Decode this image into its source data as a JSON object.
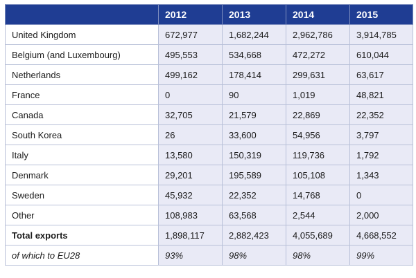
{
  "table": {
    "header": [
      "",
      "2012",
      "2013",
      "2014",
      "2015"
    ],
    "rows": [
      {
        "label": "United Kingdom",
        "values": [
          "672,977",
          "1,682,244",
          "2,962,786",
          "3,914,785"
        ]
      },
      {
        "label": "Belgium (and Luxembourg)",
        "values": [
          "495,553",
          "534,668",
          "472,272",
          "610,044"
        ]
      },
      {
        "label": "Netherlands",
        "values": [
          "499,162",
          "178,414",
          "299,631",
          "63,617"
        ]
      },
      {
        "label": "France",
        "values": [
          "0",
          "90",
          "1,019",
          "48,821"
        ]
      },
      {
        "label": "Canada",
        "values": [
          "32,705",
          "21,579",
          "22,869",
          "22,352"
        ]
      },
      {
        "label": "South Korea",
        "values": [
          "26",
          "33,600",
          "54,956",
          "3,797"
        ]
      },
      {
        "label": "Italy",
        "values": [
          "13,580",
          "150,319",
          "119,736",
          "1,792"
        ]
      },
      {
        "label": "Denmark",
        "values": [
          "29,201",
          "195,589",
          "105,108",
          "1,343"
        ]
      },
      {
        "label": "Sweden",
        "values": [
          "45,932",
          "22,352",
          "14,768",
          "0"
        ]
      },
      {
        "label": "Other",
        "values": [
          "108,983",
          "63,568",
          "2,544",
          "2,000"
        ]
      },
      {
        "label": "Total exports",
        "values": [
          "1,898,117",
          "2,882,423",
          "4,055,689",
          "4,668,552"
        ],
        "style": "bold"
      },
      {
        "label": "of which to EU28",
        "values": [
          "93%",
          "98%",
          "98%",
          "99%"
        ],
        "style": "italic"
      }
    ]
  },
  "colors": {
    "header_bg": "#1f3d93",
    "header_text": "#ffffff",
    "value_cell_bg": "#e9eaf6",
    "label_cell_bg": "#ffffff"
  }
}
